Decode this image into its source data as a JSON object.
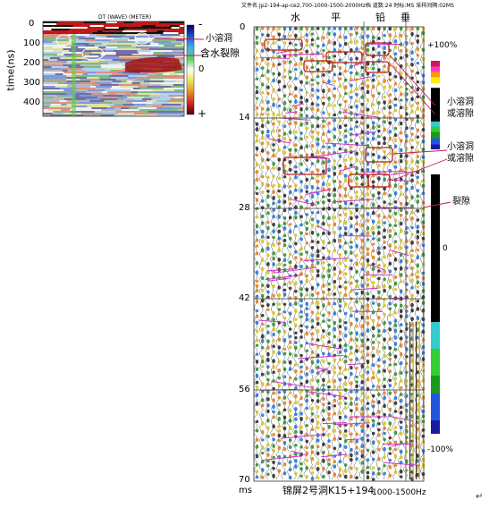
{
  "left_panel": {
    "axis_label": "time(ns)",
    "header_text": "DT (WAVE) (METER)",
    "y_ticks": [
      "0",
      "100",
      "200",
      "300",
      "400"
    ],
    "colorbar_labels": {
      "top": "-",
      "middle": "0",
      "bottom": "+"
    },
    "annotations": [
      "小溶洞",
      "含水裂隙"
    ]
  },
  "right_panel": {
    "file_header": "文件名:jp2-194-ap-ce2,700-1000-1500-2000Hz档 道数:24 时标:MS 采样间隔:02MS",
    "column_labels": [
      "水",
      "平",
      "铅",
      "垂"
    ],
    "y_ticks": [
      "0",
      "14",
      "28",
      "42",
      "56",
      "70"
    ],
    "y_unit": "ms",
    "footer_title": "锦屏2号洞K15+194",
    "footer_freq": "1000-1500Hz",
    "colorbar_labels": {
      "top": "+100%",
      "middle": "0",
      "bottom": "-100%"
    },
    "annotations": [
      "小溶洞或溶隙",
      "小溶洞或溶隙",
      "裂隙"
    ]
  },
  "colors": {
    "annotation_line": "#c2185b",
    "anomaly_box": "#b22222",
    "event_line": "#cc33cc"
  }
}
